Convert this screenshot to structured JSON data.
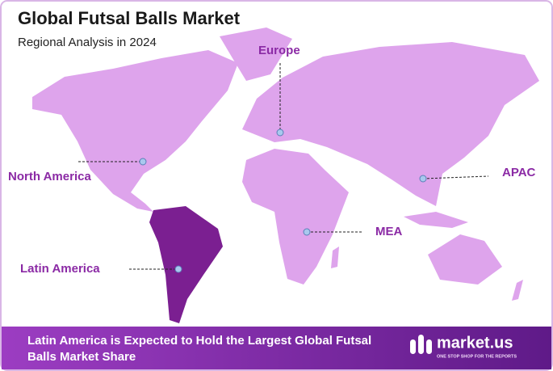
{
  "header": {
    "title": "Global Futsal Balls Market",
    "subtitle": "Regional Analysis in 2024"
  },
  "regions": [
    {
      "label": "Europe"
    },
    {
      "label": "North America"
    },
    {
      "label": "APAC"
    },
    {
      "label": "MEA"
    },
    {
      "label": "Latin America"
    }
  ],
  "footer": {
    "text": "Latin America is Expected to Hold the Largest Global Futsal Balls Market Share"
  },
  "logo": {
    "name": "market.us",
    "tagline": "ONE STOP SHOP FOR THE REPORTS"
  }
}
